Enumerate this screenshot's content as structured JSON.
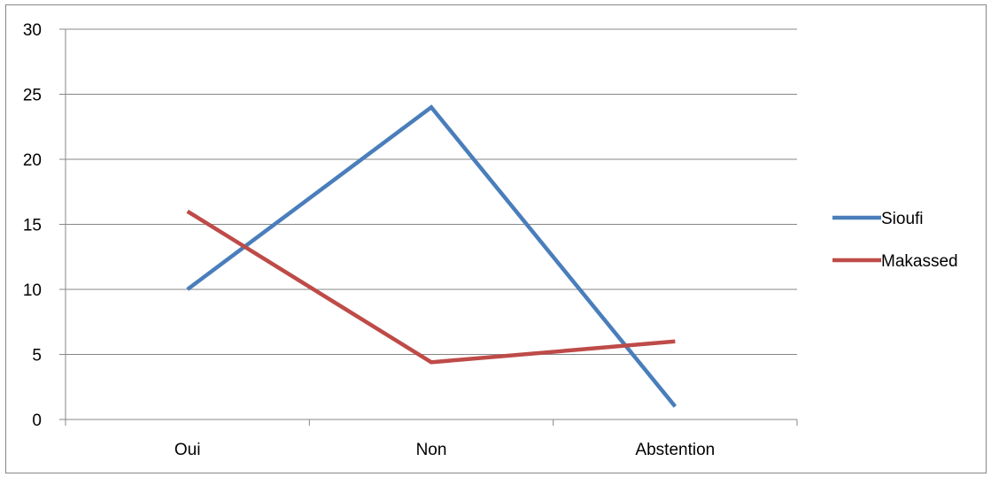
{
  "chart_data": {
    "type": "line",
    "categories": [
      "Oui",
      "Non",
      "Abstention"
    ],
    "series": [
      {
        "name": "Sioufi",
        "values": [
          10,
          24,
          1
        ],
        "color": "#4a7ebb"
      },
      {
        "name": "Makassed",
        "values": [
          16,
          4.4,
          6
        ],
        "color": "#be4b48"
      }
    ],
    "ylim": [
      0,
      30
    ],
    "yticks": [
      0,
      5,
      10,
      15,
      20,
      25,
      30
    ],
    "grid": true,
    "legend": "right",
    "axis_color": "#878787"
  }
}
